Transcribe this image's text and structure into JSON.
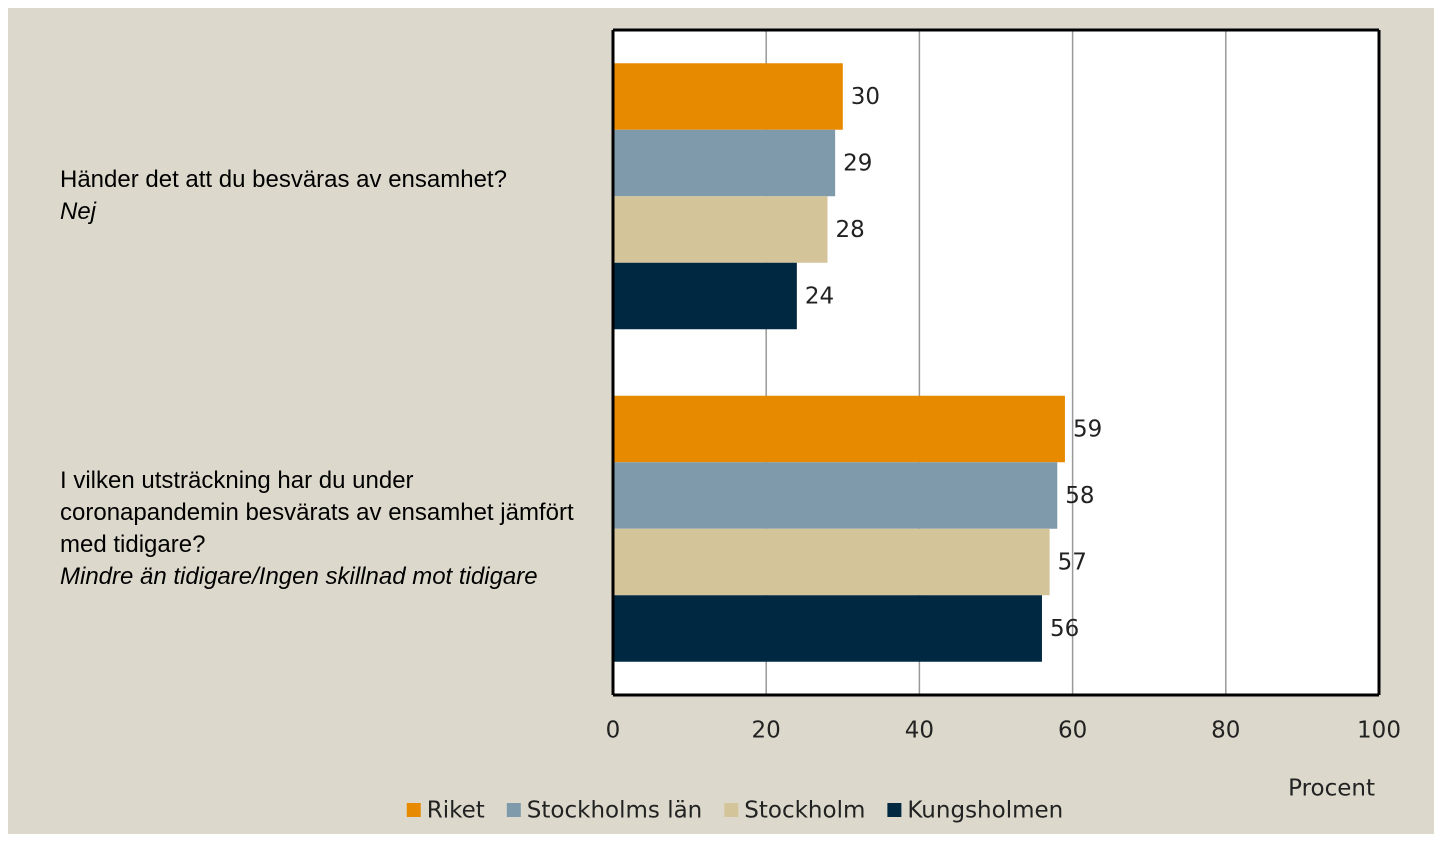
{
  "chart_data": {
    "type": "bar",
    "orientation": "horizontal",
    "categories": [
      "Händer det att du besväras av ensamhet?",
      "I vilken utsträckning har du under coronapandemin besvärats av ensamhet jämfört med tidigare?"
    ],
    "category_notes": [
      "Nej",
      "Mindre än tidigare/Ingen skillnad mot tidigare"
    ],
    "series": [
      {
        "name": "Riket",
        "color": "#e88a00",
        "values": [
          30,
          59
        ]
      },
      {
        "name": "Stockholms län",
        "color": "#7f9aaa",
        "values": [
          29,
          58
        ]
      },
      {
        "name": "Stockholm",
        "color": "#d4c49a",
        "values": [
          28,
          57
        ]
      },
      {
        "name": "Kungsholmen",
        "color": "#002840",
        "values": [
          24,
          56
        ]
      }
    ],
    "xlabel": "Procent",
    "xlim": [
      0,
      100
    ],
    "xticks": [
      0,
      20,
      40,
      60,
      80,
      100
    ],
    "grid": true
  }
}
